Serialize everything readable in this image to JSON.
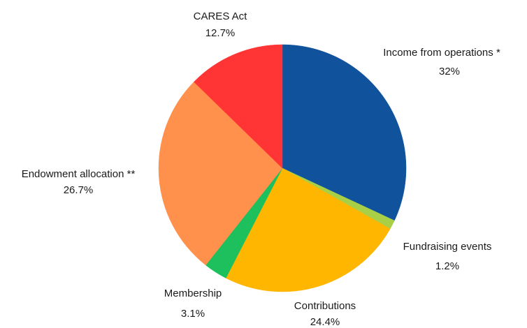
{
  "chart_data": {
    "type": "pie",
    "title": "",
    "slices": [
      {
        "name": "Income from operations *",
        "value": 32,
        "value_label": "32%",
        "color": "#10529c"
      },
      {
        "name": "Fundraising events",
        "value": 1.2,
        "value_label": "1.2%",
        "color": "#a8cf45"
      },
      {
        "name": "Contributions",
        "value": 24.4,
        "value_label": "24.4%",
        "color": "#ffb600"
      },
      {
        "name": "Membership",
        "value": 3.1,
        "value_label": "3.1%",
        "color": "#1ec05d"
      },
      {
        "name": "Endowment allocation **",
        "value": 26.7,
        "value_label": "26.7%",
        "color": "#ff914c"
      },
      {
        "name": "CARES Act",
        "value": 12.7,
        "value_label": "12.7%",
        "color": "#ff3535"
      }
    ],
    "start_angle": "12 o'clock",
    "direction": "clockwise",
    "legend": "none"
  }
}
